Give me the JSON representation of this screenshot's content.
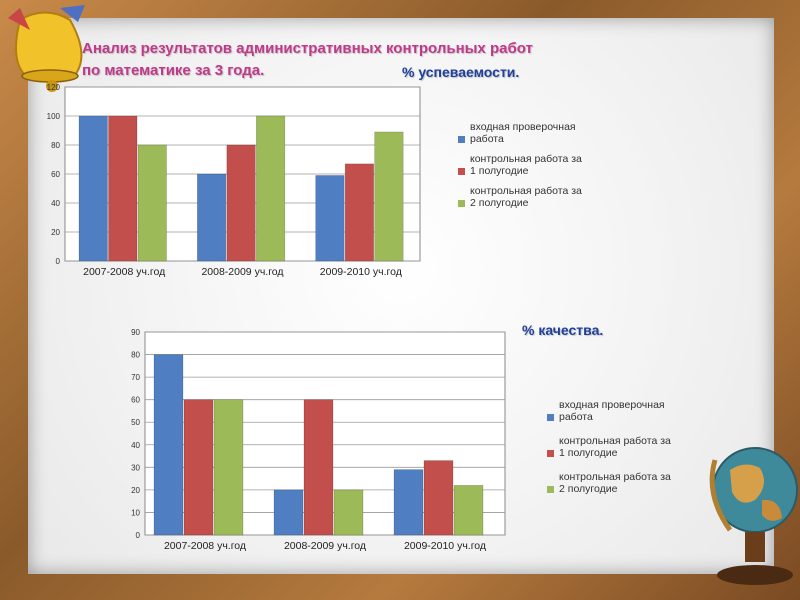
{
  "header": {
    "title_line1": "Анализ результатов административных контрольных работ",
    "title_line2": "по математике за 3 года."
  },
  "colors": {
    "series1": "#4f7fc2",
    "series2": "#c24f4c",
    "series3": "#9cbb58",
    "title": "#c0398a",
    "subtitle": "#1f3f9c"
  },
  "icons": [
    "bell-icon",
    "globe-icon"
  ],
  "chart_data": [
    {
      "type": "bar",
      "title": "% успеваемости.",
      "categories": [
        "2007-2008 уч.год",
        "2008-2009 уч.год",
        "2009-2010 уч.год"
      ],
      "series": [
        {
          "name": "входная проверочная работа",
          "values": [
            100,
            60,
            59
          ]
        },
        {
          "name": "контрольная работа за 1 полугодие",
          "values": [
            100,
            80,
            67
          ]
        },
        {
          "name": "контрольная работа за 2 полугодие",
          "values": [
            80,
            100,
            89
          ]
        }
      ],
      "ylim": [
        0,
        120
      ],
      "yticks": [
        0,
        20,
        40,
        60,
        80,
        100,
        120
      ],
      "grid": true,
      "legend": "right"
    },
    {
      "type": "bar",
      "title": "% качества.",
      "categories": [
        "2007-2008 уч.год",
        "2008-2009 уч.год",
        "2009-2010 уч.год"
      ],
      "series": [
        {
          "name": "входная проверочная работа",
          "values": [
            80,
            20,
            29
          ]
        },
        {
          "name": "контрольная работа за 1 полугодие",
          "values": [
            60,
            60,
            33
          ]
        },
        {
          "name": "контрольная работа за 2 полугодие",
          "values": [
            60,
            20,
            22
          ]
        }
      ],
      "ylim": [
        0,
        90
      ],
      "yticks": [
        0,
        10,
        20,
        30,
        40,
        50,
        60,
        70,
        80,
        90
      ],
      "grid": true,
      "legend": "right"
    }
  ]
}
